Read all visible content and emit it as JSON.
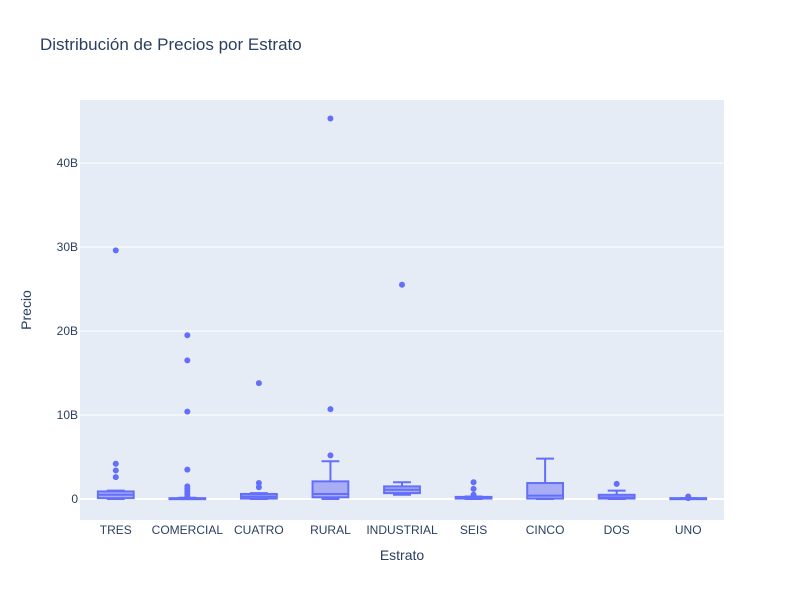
{
  "chart_data": {
    "type": "box",
    "title": "Distribución de Precios por Estrato",
    "xlabel": "Estrato",
    "ylabel": "Precio",
    "ylim": [
      -2.5,
      47.5
    ],
    "yticks": [
      {
        "value": 0,
        "label": "0"
      },
      {
        "value": 10,
        "label": "10B"
      },
      {
        "value": 20,
        "label": "20B"
      },
      {
        "value": 30,
        "label": "30B"
      },
      {
        "value": 40,
        "label": "40B"
      }
    ],
    "unit_multiplier": "B (billions)",
    "grid": true,
    "colors": {
      "plot_bg": "#e5ecf6",
      "grid": "#ffffff",
      "box_line": "#636efa",
      "box_fill": "#a9adf5",
      "text": "#2a3f5f"
    },
    "categories": [
      "TRES",
      "COMERCIAL",
      "CUATRO",
      "RURAL",
      "INDUSTRIAL",
      "SEIS",
      "CINCO",
      "DOS",
      "UNO"
    ],
    "boxes": [
      {
        "category": "TRES",
        "lower_whisker": 0.0,
        "q1": 0.1,
        "median": 0.5,
        "q3": 0.9,
        "upper_whisker": 1.0,
        "outliers": [
          2.6,
          3.4,
          4.2,
          29.6
        ]
      },
      {
        "category": "COMERCIAL",
        "lower_whisker": 0.0,
        "q1": 0.0,
        "median": 0.05,
        "q3": 0.1,
        "upper_whisker": 0.15,
        "outliers": [
          0.3,
          0.6,
          0.9,
          1.2,
          1.5,
          3.5,
          10.4,
          16.5,
          19.5
        ]
      },
      {
        "category": "CUATRO",
        "lower_whisker": 0.0,
        "q1": 0.05,
        "median": 0.3,
        "q3": 0.6,
        "upper_whisker": 0.7,
        "outliers": [
          1.4,
          1.9,
          13.8
        ]
      },
      {
        "category": "RURAL",
        "lower_whisker": 0.0,
        "q1": 0.2,
        "median": 0.6,
        "q3": 2.1,
        "upper_whisker": 4.5,
        "outliers": [
          5.2,
          10.7,
          45.3
        ]
      },
      {
        "category": "INDUSTRIAL",
        "lower_whisker": 0.5,
        "q1": 0.7,
        "median": 1.1,
        "q3": 1.5,
        "upper_whisker": 2.0,
        "outliers": [
          25.5
        ]
      },
      {
        "category": "SEIS",
        "lower_whisker": 0.0,
        "q1": 0.05,
        "median": 0.15,
        "q3": 0.25,
        "upper_whisker": 0.3,
        "outliers": [
          0.5,
          1.2,
          2.0
        ]
      },
      {
        "category": "CINCO",
        "lower_whisker": 0.0,
        "q1": 0.05,
        "median": 0.4,
        "q3": 1.9,
        "upper_whisker": 4.8,
        "outliers": []
      },
      {
        "category": "DOS",
        "lower_whisker": 0.0,
        "q1": 0.05,
        "median": 0.2,
        "q3": 0.5,
        "upper_whisker": 1.0,
        "outliers": [
          1.8
        ]
      },
      {
        "category": "UNO",
        "lower_whisker": 0.0,
        "q1": 0.0,
        "median": 0.05,
        "q3": 0.1,
        "upper_whisker": 0.1,
        "outliers": [
          0.1,
          0.2,
          0.3
        ]
      }
    ]
  }
}
